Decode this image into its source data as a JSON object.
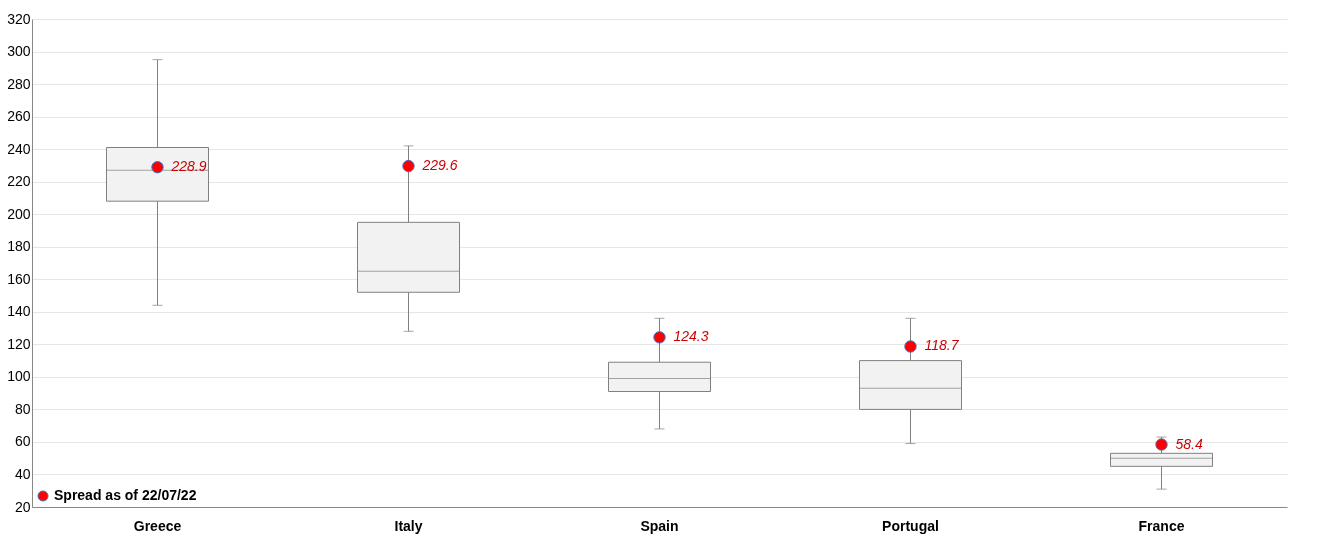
{
  "chart_data": {
    "type": "box",
    "categories": [
      "Greece",
      "Italy",
      "Spain",
      "Portugal",
      "France"
    ],
    "boxes": [
      {
        "low": 144,
        "q1": 208,
        "median": 227,
        "q3": 241,
        "high": 295
      },
      {
        "low": 128,
        "q1": 152,
        "median": 165,
        "q3": 195,
        "high": 242
      },
      {
        "low": 68,
        "q1": 91,
        "median": 99,
        "q3": 109,
        "high": 136
      },
      {
        "low": 59,
        "q1": 80,
        "median": 93,
        "q3": 110,
        "high": 136
      },
      {
        "low": 31,
        "q1": 45,
        "median": 50,
        "q3": 53,
        "high": 63
      }
    ],
    "series": [
      {
        "type": "scatter",
        "name": "Spread as of 22/07/22",
        "color": "#ff0000",
        "x": [
          "Greece",
          "Italy",
          "Spain",
          "Portugal",
          "France"
        ],
        "values": [
          228.9,
          229.6,
          124.3,
          118.7,
          58.4
        ],
        "value_labels": [
          "228.9",
          "229.6",
          "124.3",
          "118.7",
          "58.4"
        ]
      }
    ],
    "ylim": [
      20,
      320
    ],
    "yticks": [
      20,
      40,
      60,
      80,
      100,
      120,
      140,
      160,
      180,
      200,
      220,
      240,
      260,
      280,
      300,
      320
    ],
    "grid": "y",
    "legend": "bottom left",
    "marker": "circle"
  }
}
